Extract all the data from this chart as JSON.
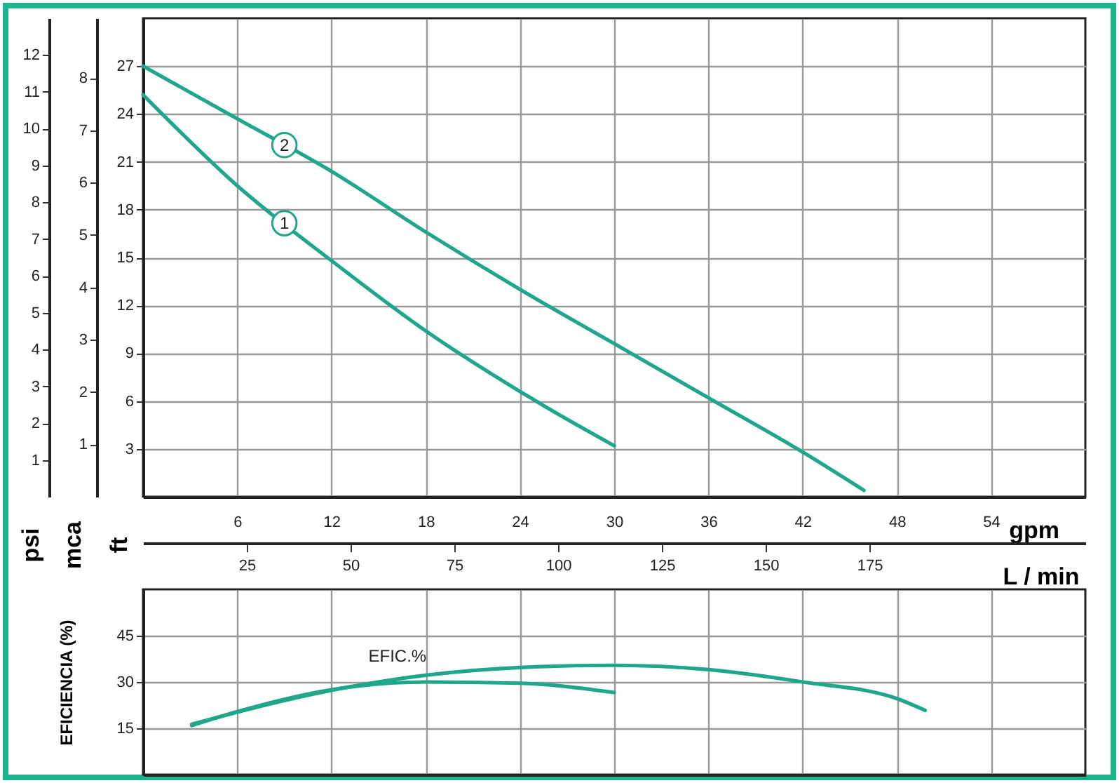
{
  "chart_data": [
    {
      "type": "line",
      "xlabel": "gpm",
      "xlim": [
        0,
        60
      ],
      "xticks": [
        6,
        12,
        18,
        24,
        30,
        36,
        42,
        48,
        54
      ],
      "x2label": "L / min",
      "x2lim": [
        0,
        227
      ],
      "x2ticks": [
        25,
        50,
        75,
        100,
        125,
        150,
        175
      ],
      "ylabel": "ft",
      "ylim": [
        0,
        30
      ],
      "yticks": [
        3,
        6,
        9,
        12,
        15,
        18,
        21,
        24,
        27
      ],
      "y2label": "psi",
      "y2lim": [
        0,
        13
      ],
      "y2ticks": [
        1,
        2,
        3,
        4,
        5,
        6,
        7,
        8,
        9,
        10,
        11,
        12
      ],
      "y3label": "mca",
      "y3lim": [
        0,
        9.14
      ],
      "y3ticks": [
        1,
        2,
        3,
        4,
        5,
        6,
        7,
        8
      ],
      "grid": true,
      "series": [
        {
          "name": "1",
          "color": "#20a68b",
          "x": [
            0,
            6,
            12,
            18,
            24,
            25.7,
            30
          ],
          "values": [
            25.2,
            19.5,
            14.8,
            10.4,
            6.6,
            5.6,
            3.2
          ]
        },
        {
          "name": "2",
          "color": "#20a68b",
          "x": [
            0,
            6,
            12,
            18,
            24,
            30,
            36,
            42,
            45.9
          ],
          "values": [
            27,
            23.7,
            20.4,
            16.6,
            13,
            9.6,
            6.2,
            2.8,
            0.4
          ]
        }
      ]
    },
    {
      "type": "line",
      "ylabel": "EFICIENCIA (%)",
      "xlim": [
        0,
        60
      ],
      "xticks": [
        6,
        12,
        18,
        24,
        30,
        36,
        42,
        48,
        54
      ],
      "ylim": [
        0,
        60
      ],
      "yticks": [
        15,
        30,
        45
      ],
      "tick_labels": "y",
      "grid": true,
      "annotations": [
        "EFIC.%"
      ],
      "series": [
        {
          "color": "#20a68b",
          "x": [
            3.1,
            6,
            12,
            18,
            24,
            30
          ],
          "values": [
            15.9,
            20.4,
            27.5,
            30,
            29.6,
            26.6
          ]
        },
        {
          "color": "#20a68b",
          "x": [
            3.1,
            12,
            18,
            24,
            30,
            36,
            42,
            48,
            49.8
          ],
          "values": [
            16.3,
            27.3,
            32.2,
            34.7,
            35.4,
            34,
            30,
            24.6,
            20.8
          ]
        }
      ]
    }
  ]
}
